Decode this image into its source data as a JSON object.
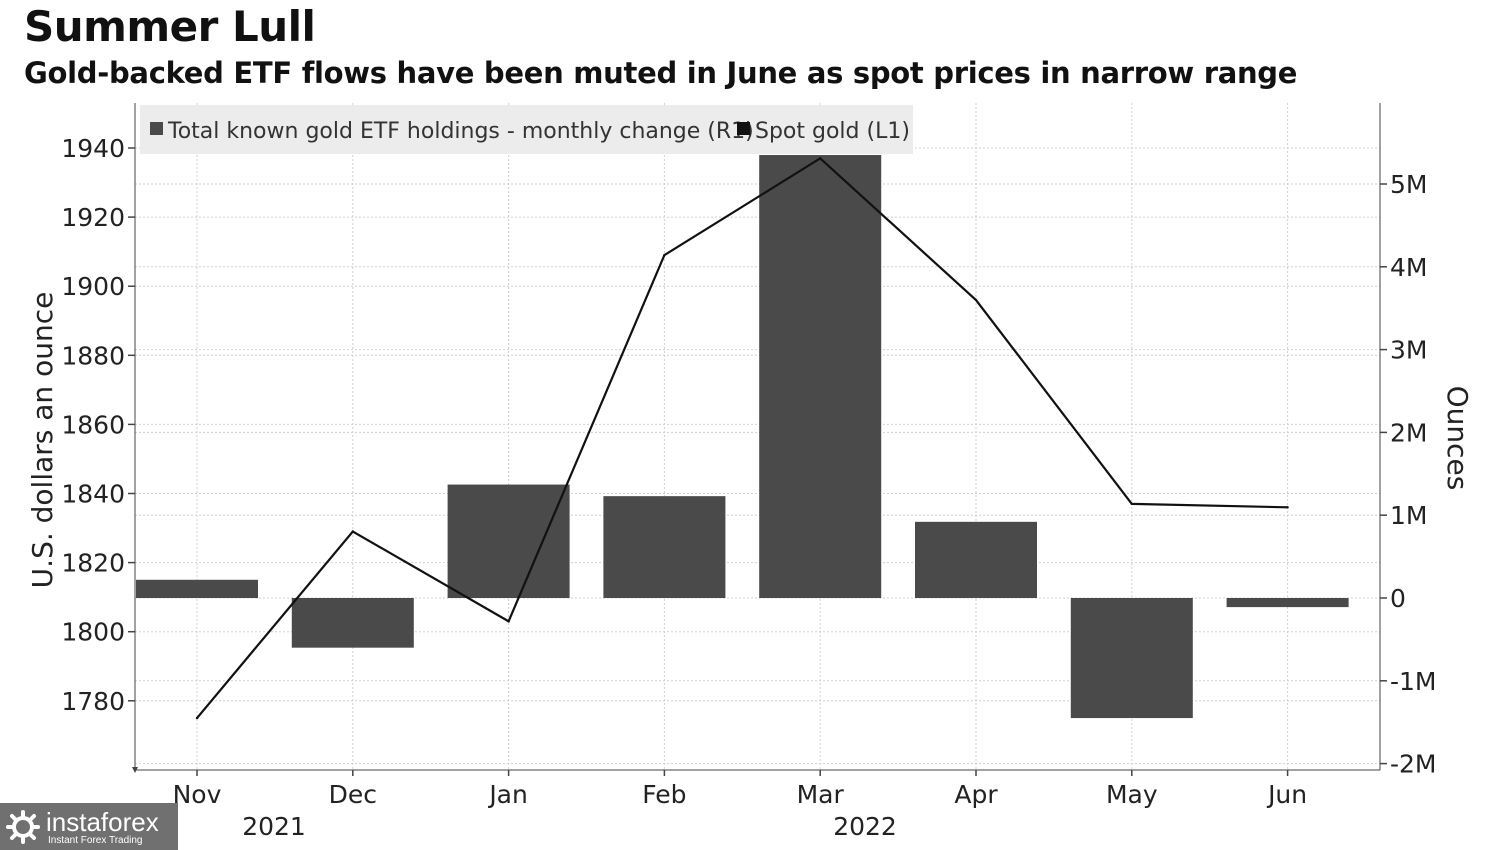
{
  "title": "Summer Lull",
  "subtitle": "Gold-backed ETF flows have been muted in June as spot prices in narrow range",
  "watermark": {
    "name": "instaforex",
    "tagline": "Instant Forex Trading"
  },
  "chart_data": {
    "type": "bar",
    "categories": [
      "Nov",
      "Dec",
      "Jan",
      "Feb",
      "Mar",
      "Apr",
      "May",
      "Jun"
    ],
    "year_labels": [
      "2021",
      "2022"
    ],
    "legend_position": "top-left",
    "grid": true,
    "series": [
      {
        "name": "Total known gold ETF holdings - monthly change (R1)",
        "kind": "bar",
        "axis": "right",
        "color": "#4a4a4a",
        "values": [
          220000,
          -600000,
          1370000,
          1230000,
          5350000,
          920000,
          -1450000,
          -110000
        ]
      },
      {
        "name": "Spot gold (L1)",
        "kind": "line",
        "axis": "left",
        "color": "#111111",
        "values": [
          1775,
          1829,
          1803,
          1909,
          1937,
          1896,
          1837,
          1836
        ]
      }
    ],
    "left_axis": {
      "label": "U.S. dollars an ounce",
      "range": [
        1760,
        1950
      ],
      "ticks": [
        1780,
        1800,
        1820,
        1840,
        1860,
        1880,
        1900,
        1920,
        1940
      ]
    },
    "right_axis": {
      "label": "Ounces",
      "range": [
        -2000000,
        6000000
      ],
      "ticks": [
        -2000000,
        -1000000,
        0,
        1000000,
        2000000,
        3000000,
        4000000,
        5000000
      ],
      "tick_labels": [
        "-2M",
        "-1M",
        "0",
        "1M",
        "2M",
        "3M",
        "4M",
        "5M"
      ]
    }
  }
}
